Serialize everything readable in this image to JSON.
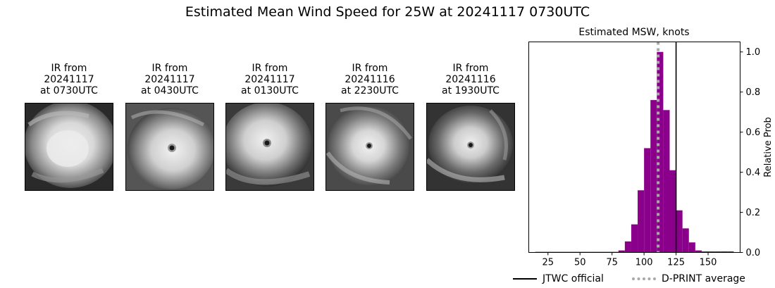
{
  "title": "Estimated Mean Wind Speed for 25W at 20241117 0730UTC",
  "panels": [
    {
      "line1": "IR from",
      "line2": "20241117",
      "line3": "at 0730UTC"
    },
    {
      "line1": "IR from",
      "line2": "20241117",
      "line3": "at 0430UTC"
    },
    {
      "line1": "IR from",
      "line2": "20241117",
      "line3": "at 0130UTC"
    },
    {
      "line1": "IR from",
      "line2": "20241116",
      "line3": "at 2230UTC"
    },
    {
      "line1": "IR from",
      "line2": "20241116",
      "line3": "at 1930UTC"
    }
  ],
  "chart_data": {
    "type": "bar",
    "title": "Estimated MSW, knots",
    "xlabel": "",
    "ylabel": "Relative Prob",
    "xlim": [
      10,
      175
    ],
    "ylim": [
      0,
      1.05
    ],
    "xticks": [
      25,
      50,
      75,
      100,
      125,
      150
    ],
    "yticks": [
      0.0,
      0.2,
      0.4,
      0.6,
      0.8,
      1.0
    ],
    "bin_width": 5,
    "bar_color": "#8b008b",
    "bins": [
      {
        "x": 17.5,
        "y": 0.003
      },
      {
        "x": 22.5,
        "y": 0.003
      },
      {
        "x": 27.5,
        "y": 0.003
      },
      {
        "x": 32.5,
        "y": 0.003
      },
      {
        "x": 37.5,
        "y": 0.003
      },
      {
        "x": 42.5,
        "y": 0.003
      },
      {
        "x": 47.5,
        "y": 0.003
      },
      {
        "x": 52.5,
        "y": 0.003
      },
      {
        "x": 57.5,
        "y": 0.003
      },
      {
        "x": 62.5,
        "y": 0.003
      },
      {
        "x": 67.5,
        "y": 0.003
      },
      {
        "x": 72.5,
        "y": 0.003
      },
      {
        "x": 77.5,
        "y": 0.003
      },
      {
        "x": 82.5,
        "y": 0.01
      },
      {
        "x": 87.5,
        "y": 0.055
      },
      {
        "x": 92.5,
        "y": 0.14
      },
      {
        "x": 97.5,
        "y": 0.31
      },
      {
        "x": 102.5,
        "y": 0.52
      },
      {
        "x": 107.5,
        "y": 0.76
      },
      {
        "x": 112.5,
        "y": 1.0
      },
      {
        "x": 117.5,
        "y": 0.71
      },
      {
        "x": 122.5,
        "y": 0.41
      },
      {
        "x": 127.5,
        "y": 0.21
      },
      {
        "x": 132.5,
        "y": 0.12
      },
      {
        "x": 137.5,
        "y": 0.05
      },
      {
        "x": 142.5,
        "y": 0.01
      },
      {
        "x": 147.5,
        "y": 0.005
      },
      {
        "x": 152.5,
        "y": 0.005
      },
      {
        "x": 157.5,
        "y": 0.005
      },
      {
        "x": 162.5,
        "y": 0.005
      },
      {
        "x": 167.5,
        "y": 0.005
      }
    ],
    "jtwc_official": 125,
    "dprint_average": 111,
    "legend": {
      "placement": "bottom",
      "jtwc_label": "JTWC official",
      "dprint_label": "D-PRINT average",
      "jtwc_color": "#000000",
      "dprint_color": "#a9a9a9"
    }
  }
}
